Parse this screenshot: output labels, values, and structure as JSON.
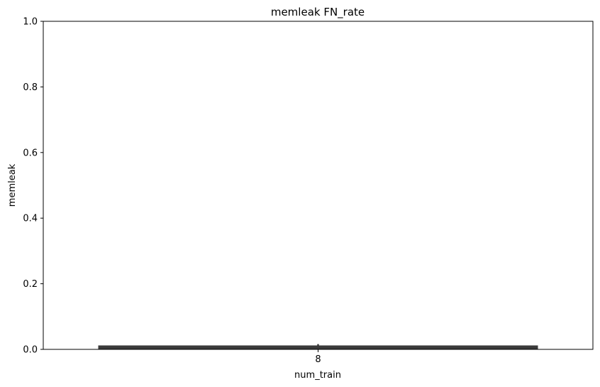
{
  "chart_data": {
    "type": "bar",
    "title": "memleak FN_rate",
    "xlabel": "num_train",
    "ylabel": "memleak",
    "categories": [
      "8"
    ],
    "ylim": [
      0,
      1.0
    ],
    "yticks": [
      "0.0",
      "0.2",
      "0.4",
      "0.6",
      "0.8",
      "1.0"
    ],
    "grid": false,
    "bar_color": "#3a3a3a",
    "series": [
      {
        "values": [
          0.012
        ],
        "error": [
          0.004
        ]
      }
    ]
  }
}
